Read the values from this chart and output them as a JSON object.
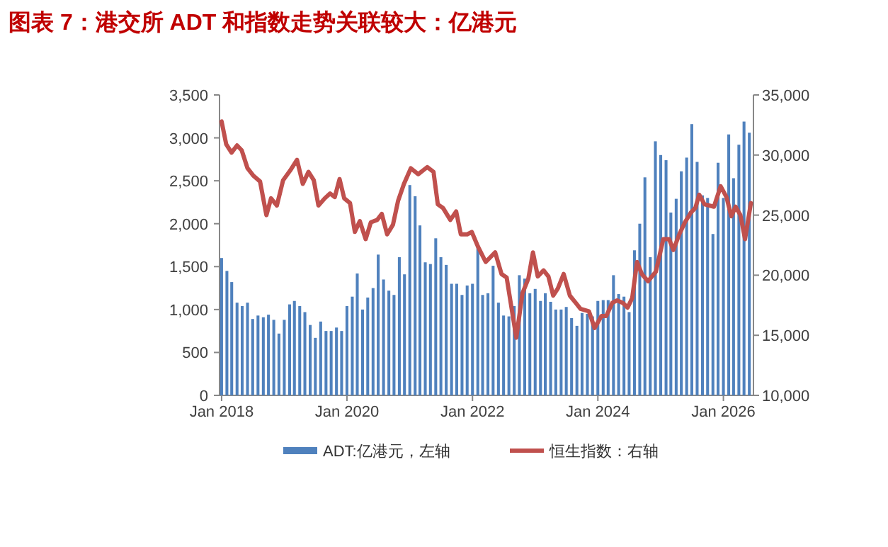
{
  "chart_data": {
    "type": "bar",
    "title": "图表 7：港交所 ADT 和指数走势关联较大：亿港元",
    "x": [
      "2018-01",
      "2018-02",
      "2018-03",
      "2018-04",
      "2018-05",
      "2018-06",
      "2018-07",
      "2018-08",
      "2018-09",
      "2018-10",
      "2018-11",
      "2018-12",
      "2019-01",
      "2019-02",
      "2019-03",
      "2019-04",
      "2019-05",
      "2019-06",
      "2019-07",
      "2019-08",
      "2019-09",
      "2019-10",
      "2019-11",
      "2019-12",
      "2020-01",
      "2020-02",
      "2020-03",
      "2020-04",
      "2020-05",
      "2020-06",
      "2020-07",
      "2020-08",
      "2020-09",
      "2020-10",
      "2020-11",
      "2020-12",
      "2021-01",
      "2021-02",
      "2021-03",
      "2021-04",
      "2021-05",
      "2021-06",
      "2021-07",
      "2021-08",
      "2021-09",
      "2021-10",
      "2021-11",
      "2021-12",
      "2022-01",
      "2022-02",
      "2022-03",
      "2022-04",
      "2022-05",
      "2022-06",
      "2022-07",
      "2022-08",
      "2022-09",
      "2022-10",
      "2022-11",
      "2022-12",
      "2023-01",
      "2023-02",
      "2023-03",
      "2023-04",
      "2023-05",
      "2023-06",
      "2023-07",
      "2023-08",
      "2023-09",
      "2023-10",
      "2023-11",
      "2023-12",
      "2024-01",
      "2024-02",
      "2024-03",
      "2024-04",
      "2024-05",
      "2024-06",
      "2024-07",
      "2024-08",
      "2024-09",
      "2024-10",
      "2024-11",
      "2024-12",
      "2025-01",
      "2025-02",
      "2025-03",
      "2025-04",
      "2025-05",
      "2025-06",
      "2025-07",
      "2025-08",
      "2025-09",
      "2025-10",
      "2025-11",
      "2025-12",
      "2026-01",
      "2026-02",
      "2026-03",
      "2026-04",
      "2026-05",
      "2026-06"
    ],
    "series": [
      {
        "name": "ADT:亿港元，左轴",
        "color": "#4f81bd",
        "values": [
          1600,
          1450,
          1320,
          1080,
          1040,
          1080,
          890,
          930,
          910,
          940,
          880,
          720,
          880,
          1060,
          1100,
          1040,
          970,
          820,
          670,
          860,
          750,
          750,
          790,
          750,
          1040,
          1150,
          1420,
          1000,
          1140,
          1250,
          1640,
          1350,
          1220,
          1170,
          1610,
          1410,
          2450,
          2320,
          1980,
          1550,
          1530,
          1830,
          1610,
          1520,
          1300,
          1300,
          1170,
          1280,
          1300,
          1730,
          1170,
          1190,
          1510,
          1080,
          930,
          920,
          1040,
          1400,
          1360,
          1190,
          1240,
          1100,
          1190,
          1090,
          1000,
          1000,
          1030,
          900,
          810,
          960,
          950,
          920,
          1100,
          1110,
          1110,
          1400,
          1180,
          1150,
          970,
          1690,
          2000,
          2540,
          1610,
          2960,
          2800,
          2740,
          2130,
          2290,
          2610,
          2770,
          3160,
          2720,
          2330,
          2300,
          1880,
          2710,
          2300,
          3040,
          2530,
          2920,
          3190,
          3060
        ]
      },
      {
        "name": "恒生指数：右轴",
        "type": "line",
        "axis": "y2",
        "color": "#c0504d",
        "x": [
          "2018-01-01",
          "2018-01-28",
          "2018-02-28",
          "2018-04-01",
          "2018-04-28",
          "2018-06-01",
          "2018-07-04",
          "2018-08-13",
          "2018-09-19",
          "2018-10-16",
          "2018-11-19",
          "2018-12-25",
          "2019-02-04",
          "2019-03-16",
          "2019-04-19",
          "2019-05-22",
          "2019-06-22",
          "2019-07-19",
          "2019-08-25",
          "2019-09-25",
          "2019-10-22",
          "2019-11-19",
          "2019-12-16",
          "2020-01-19",
          "2020-02-16",
          "2020-03-16",
          "2020-04-19",
          "2020-05-19",
          "2020-06-25",
          "2020-07-22",
          "2020-08-22",
          "2020-09-25",
          "2020-10-25",
          "2020-11-28",
          "2021-01-07",
          "2021-02-19",
          "2021-04-13",
          "2021-05-19",
          "2021-06-13",
          "2021-07-13",
          "2021-08-25",
          "2021-09-28",
          "2021-10-25",
          "2021-12-01",
          "2021-12-28",
          "2022-02-01",
          "2022-03-19",
          "2022-05-13",
          "2022-06-19",
          "2022-07-19",
          "2022-09-13",
          "2022-10-19",
          "2022-11-22",
          "2022-12-19",
          "2023-01-16",
          "2023-02-19",
          "2023-03-19",
          "2023-04-16",
          "2023-05-13",
          "2023-06-16",
          "2023-07-22",
          "2023-08-25",
          "2023-09-22",
          "2023-11-10",
          "2023-12-13",
          "2024-01-22",
          "2024-02-19",
          "2024-03-25",
          "2024-04-22",
          "2024-05-25",
          "2024-06-22",
          "2024-07-19",
          "2024-08-16",
          "2024-09-13",
          "2024-10-19",
          "2024-12-04",
          "2025-01-16",
          "2025-02-19",
          "2025-03-16",
          "2025-04-19",
          "2025-05-22",
          "2025-06-25",
          "2025-07-22",
          "2025-08-13",
          "2025-09-13",
          "2025-11-07",
          "2025-12-16",
          "2026-01-19",
          "2026-02-16",
          "2026-03-13",
          "2026-04-10",
          "2026-05-07",
          "2026-06-10"
        ],
        "values": [
          32800,
          30900,
          30200,
          30800,
          30400,
          28900,
          28300,
          27800,
          25000,
          26400,
          25800,
          27900,
          28700,
          29600,
          27600,
          28600,
          27900,
          25800,
          26400,
          26800,
          26500,
          28000,
          26400,
          26000,
          23600,
          24500,
          23000,
          24400,
          24600,
          25100,
          23400,
          24200,
          26200,
          27600,
          28900,
          28400,
          29000,
          28600,
          25900,
          25600,
          24600,
          25300,
          23400,
          23400,
          23600,
          22400,
          21100,
          21900,
          20100,
          19800,
          14800,
          18500,
          19700,
          21900,
          19900,
          20400,
          19900,
          18300,
          18900,
          20100,
          18300,
          17700,
          17200,
          17000,
          15600,
          16600,
          16600,
          17700,
          17900,
          17700,
          17300,
          18100,
          21100,
          20100,
          19500,
          20300,
          23000,
          23000,
          22100,
          23400,
          24400,
          25200,
          25600,
          26700,
          25900,
          25700,
          27400,
          26500,
          24900,
          25700,
          25000,
          23000,
          26000
        ]
      }
    ],
    "xlim": [
      "2017-12-20",
      "2026-06-25"
    ],
    "xticks": [
      {
        "value": "2018-01",
        "label": "Jan 2018"
      },
      {
        "value": "2020-01",
        "label": "Jan 2020"
      },
      {
        "value": "2022-01",
        "label": "Jan 2022"
      },
      {
        "value": "2024-01",
        "label": "Jan 2024"
      },
      {
        "value": "2026-01",
        "label": "Jan 2026"
      }
    ],
    "ylim": [
      0,
      3500
    ],
    "yticks": [
      0,
      {
        "value": 500,
        "label": "500"
      },
      {
        "value": 1000,
        "label": "1,000"
      },
      {
        "value": 1500,
        "label": "1,500"
      },
      {
        "value": 2000,
        "label": "2,000"
      },
      {
        "value": 2500,
        "label": "2,500"
      },
      {
        "value": 3000,
        "label": "3,000"
      },
      {
        "value": 3500,
        "label": "3,500"
      }
    ],
    "y2lim": [
      10000,
      35000
    ],
    "y2ticks": [
      {
        "value": 10000,
        "label": "10,000"
      },
      {
        "value": 15000,
        "label": "15,000"
      },
      {
        "value": 20000,
        "label": "20,000"
      },
      {
        "value": 25000,
        "label": "25,000"
      },
      {
        "value": 30000,
        "label": "30,000"
      },
      {
        "value": 35000,
        "label": "35,000"
      }
    ],
    "legend": "bottom"
  }
}
